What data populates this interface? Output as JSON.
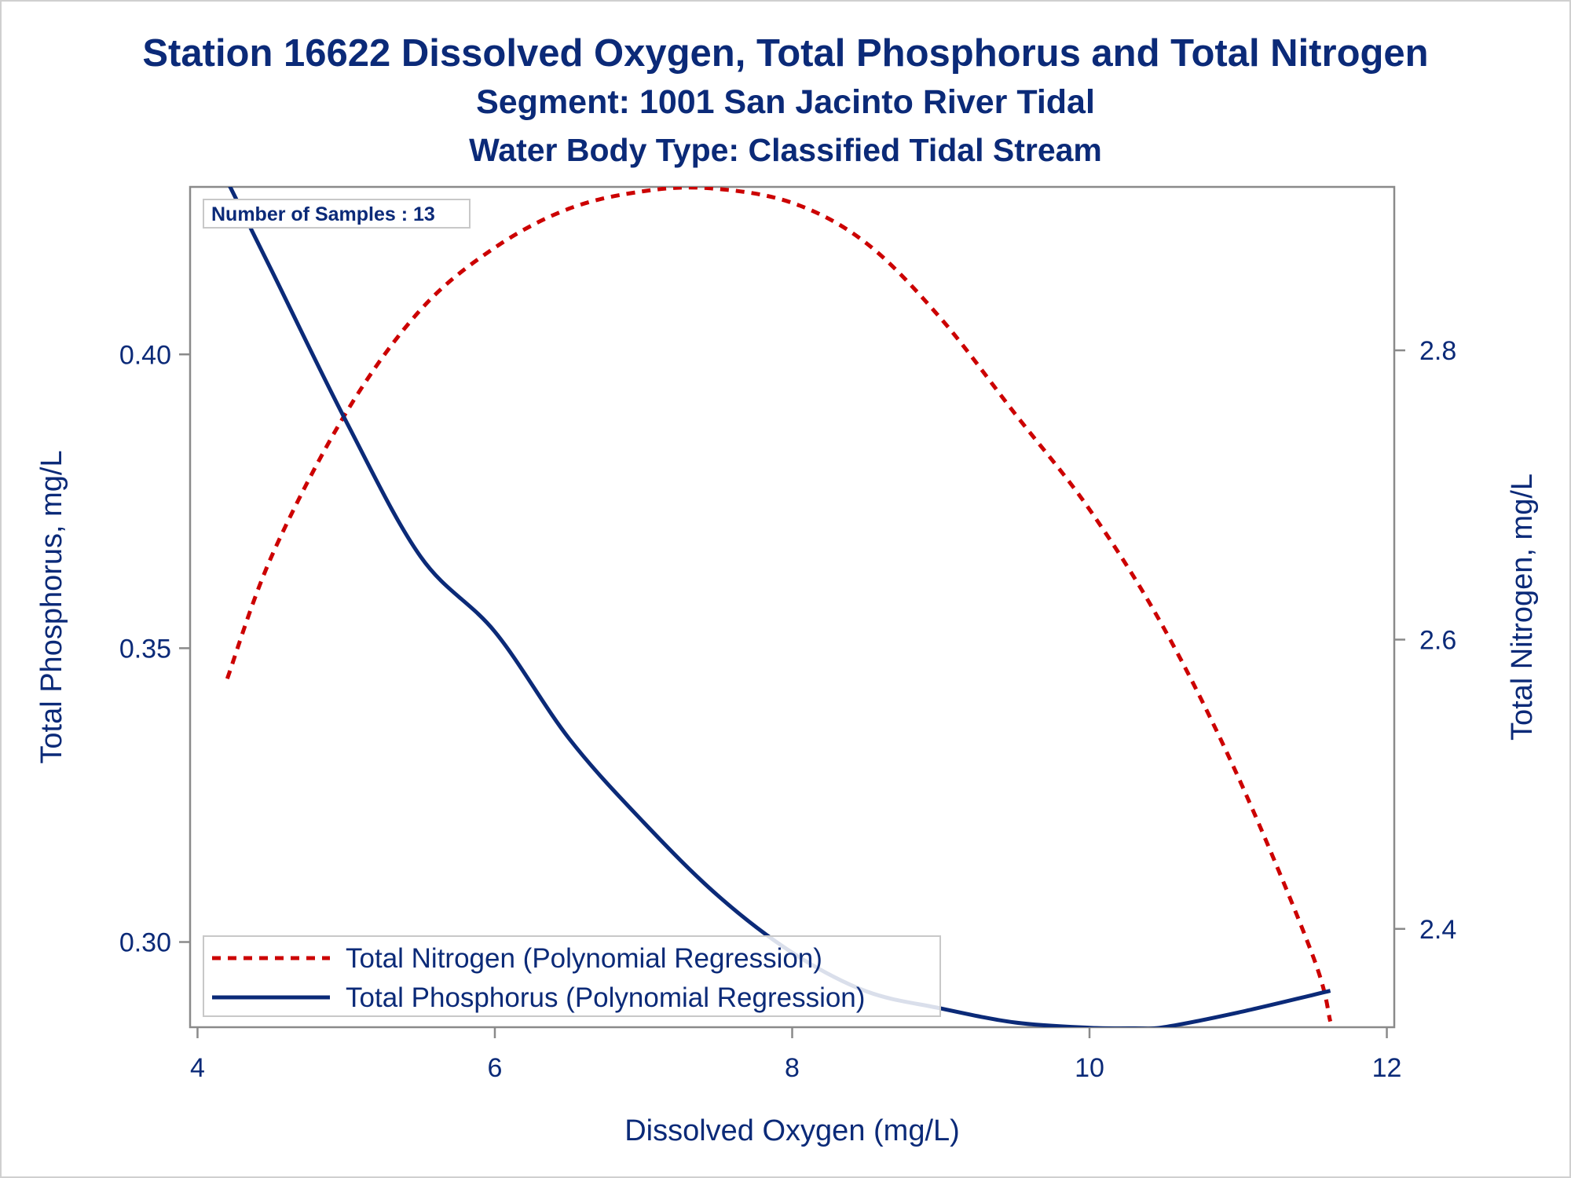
{
  "chart_data": {
    "type": "line",
    "title": "Station 16622  Dissolved Oxygen, Total Phosphorus and Total Nitrogen",
    "subtitle": "Segment: 1001  San Jacinto River Tidal",
    "subtitle2": "Water Body Type: Classified Tidal Stream",
    "xlabel": "Dissolved Oxygen (mg/L)",
    "ylabel": "Total Phosphorus, mg/L",
    "y2label": "Total Nitrogen, mg/L",
    "xlim": [
      3.95,
      12.05
    ],
    "ylim": [
      0.2855,
      0.4285
    ],
    "y2lim": [
      2.332,
      2.913
    ],
    "xticks": [
      4,
      6,
      8,
      10,
      12
    ],
    "yticks": [
      0.3,
      0.35,
      0.4
    ],
    "y2ticks": [
      2.4,
      2.6,
      2.8
    ],
    "xtick_labels": [
      "4",
      "6",
      "8",
      "10",
      "12"
    ],
    "ytick_labels": [
      "0.30",
      "0.35",
      "0.40"
    ],
    "y2tick_labels": [
      "2.4",
      "2.6",
      "2.8"
    ],
    "annotation": "Number of Samples : 13",
    "legend_position": "bottom-left",
    "grid": false,
    "series": [
      {
        "name": "Total Nitrogen (Polynomial Regression)",
        "axis": "right",
        "style": "dashed",
        "color": "#cc0000",
        "x": [
          4.2,
          4.5,
          5.0,
          5.5,
          6.0,
          6.5,
          7.0,
          7.45,
          8.0,
          8.5,
          9.0,
          9.5,
          10.0,
          10.5,
          11.0,
          11.5,
          11.62
        ],
        "values": [
          2.573,
          2.658,
          2.757,
          2.828,
          2.871,
          2.898,
          2.91,
          2.912,
          2.902,
          2.874,
          2.822,
          2.756,
          2.69,
          2.608,
          2.505,
          2.382,
          2.336
        ]
      },
      {
        "name": "Total Phosphorus (Polynomial Regression)",
        "axis": "left",
        "style": "solid",
        "color": "#0b2a78",
        "x": [
          4.2,
          4.5,
          5.0,
          5.5,
          6.0,
          6.5,
          7.0,
          7.5,
          8.0,
          8.5,
          9.0,
          9.5,
          10.0,
          10.3,
          10.5,
          11.0,
          11.62
        ],
        "values": [
          0.4295,
          0.4142,
          0.3886,
          0.3656,
          0.3528,
          0.3346,
          0.3204,
          0.3079,
          0.2982,
          0.2916,
          0.2887,
          0.2863,
          0.2854,
          0.2853,
          0.2855,
          0.288,
          0.2917
        ]
      }
    ]
  }
}
